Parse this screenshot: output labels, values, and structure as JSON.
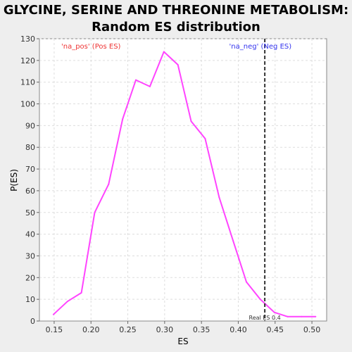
{
  "title_line1": "GLYCINE, SERINE AND THREONINE METABOLISM:",
  "title_line2": "Random ES distribution",
  "chart_data": {
    "type": "line",
    "xlabel": "ES",
    "ylabel": "P(ES)",
    "xlim": [
      0.13,
      0.52
    ],
    "ylim": [
      0,
      130
    ],
    "x_ticks": [
      "0.15",
      "0.20",
      "0.25",
      "0.30",
      "0.35",
      "0.40",
      "0.45",
      "0.50"
    ],
    "y_ticks": [
      "0",
      "10",
      "20",
      "30",
      "40",
      "50",
      "60",
      "70",
      "80",
      "90",
      "100",
      "110",
      "120",
      "130"
    ],
    "grid": true,
    "line_color": "#ff44ff",
    "series": [
      {
        "x": [
          0.149,
          0.168,
          0.187,
          0.205,
          0.224,
          0.243,
          0.261,
          0.28,
          0.299,
          0.318,
          0.336,
          0.355,
          0.374,
          0.393,
          0.411,
          0.43,
          0.449,
          0.467,
          0.486,
          0.505
        ],
        "values": [
          3,
          9,
          13,
          50,
          63,
          93,
          111,
          108,
          124,
          118,
          92,
          84,
          57,
          37,
          18,
          10,
          4,
          2,
          2,
          2
        ]
      }
    ],
    "real_es": {
      "value": 0.4,
      "x": 0.436,
      "label": "Real ES 0.4",
      "color": "#333333"
    },
    "annotations": [
      {
        "text": "'na_pos' (Pos ES)",
        "color": "#ee3333",
        "x": 0.2
      },
      {
        "text": "'na_neg' (Neg ES)",
        "color": "#3333ee",
        "x": 0.43
      }
    ]
  }
}
